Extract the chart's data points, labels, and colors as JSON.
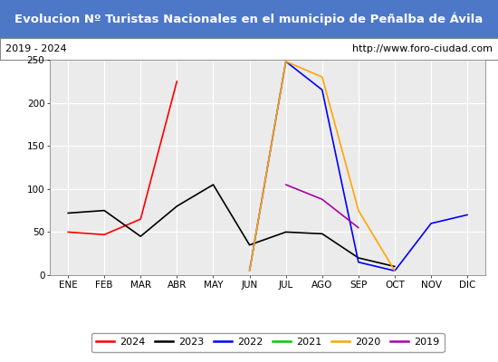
{
  "title": "Evolucion Nº Turistas Nacionales en el municipio de Peñalba de Ávila",
  "subtitle_left": "2019 - 2024",
  "subtitle_right": "http://www.foro-ciudad.com",
  "title_bg_color": "#4d78c8",
  "title_text_color": "#ffffff",
  "subtitle_bg_color": "#ffffff",
  "subtitle_text_color": "#000000",
  "plot_bg_color": "#ebebeb",
  "border_color": "#aaaaaa",
  "months": [
    "ENE",
    "FEB",
    "MAR",
    "ABR",
    "MAY",
    "JUN",
    "JUL",
    "AGO",
    "SEP",
    "OCT",
    "NOV",
    "DIC"
  ],
  "ylim": [
    0,
    250
  ],
  "yticks": [
    0,
    50,
    100,
    150,
    200,
    250
  ],
  "series": {
    "2024": {
      "color": "#ff0000",
      "values": [
        50,
        47,
        65,
        225,
        null,
        null,
        null,
        null,
        null,
        null,
        null,
        null
      ]
    },
    "2023": {
      "color": "#000000",
      "values": [
        72,
        75,
        45,
        80,
        105,
        35,
        50,
        48,
        20,
        10,
        null,
        null
      ]
    },
    "2022": {
      "color": "#0000ff",
      "values": [
        null,
        null,
        null,
        null,
        null,
        5,
        248,
        215,
        15,
        5,
        60,
        70
      ]
    },
    "2021": {
      "color": "#00cc00",
      "values": [
        null,
        null,
        null,
        null,
        null,
        null,
        null,
        null,
        null,
        null,
        null,
        null
      ]
    },
    "2020": {
      "color": "#ffa500",
      "values": [
        null,
        null,
        null,
        null,
        null,
        5,
        248,
        230,
        75,
        5,
        null,
        null
      ]
    },
    "2019": {
      "color": "#aa00aa",
      "values": [
        null,
        null,
        null,
        null,
        null,
        null,
        105,
        88,
        55,
        null,
        null,
        null
      ]
    }
  },
  "legend_order": [
    "2024",
    "2023",
    "2022",
    "2021",
    "2020",
    "2019"
  ]
}
